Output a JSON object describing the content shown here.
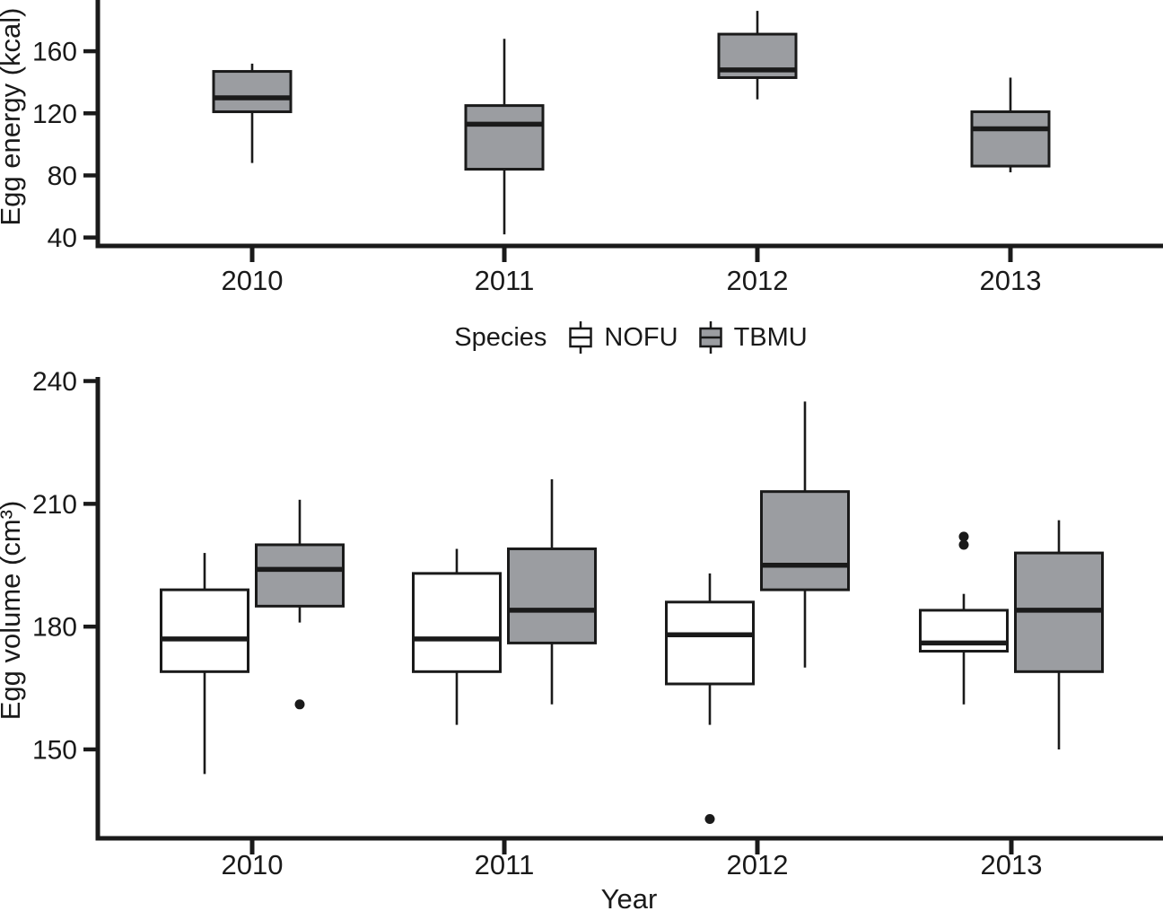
{
  "figure": {
    "background": "#ffffff",
    "line_color": "#1a1a1a",
    "text_color": "#1a1a1a"
  },
  "legend": {
    "title": "Species",
    "items": [
      {
        "label": "NOFU",
        "fill": "#ffffff"
      },
      {
        "label": "TBMU",
        "fill": "#9b9da1"
      }
    ]
  },
  "chart_data": [
    {
      "type": "boxplot",
      "id": "egg_energy",
      "title": "",
      "xlabel": "",
      "ylabel": "Egg energy (kcal)",
      "categories": [
        "2010",
        "2011",
        "2012",
        "2013"
      ],
      "yticks": [
        40,
        80,
        120,
        160
      ],
      "ylim": [
        34,
        193
      ],
      "grid": false,
      "series": [
        {
          "name": "TBMU",
          "fill": "#9b9da1",
          "boxes": [
            {
              "category": "2010",
              "low": 88,
              "q1": 121,
              "median": 130,
              "q3": 147,
              "high": 152,
              "outliers": []
            },
            {
              "category": "2011",
              "low": 42,
              "q1": 84,
              "median": 113,
              "q3": 125,
              "high": 168,
              "outliers": []
            },
            {
              "category": "2012",
              "low": 129,
              "q1": 143,
              "median": 148,
              "q3": 171,
              "high": 186,
              "outliers": []
            },
            {
              "category": "2013",
              "low": 82,
              "q1": 86,
              "median": 110,
              "q3": 121,
              "high": 143,
              "outliers": []
            }
          ]
        }
      ]
    },
    {
      "type": "boxplot",
      "id": "egg_volume",
      "title": "",
      "xlabel": "Year",
      "ylabel": "Egg volume (cm³)",
      "categories": [
        "2010",
        "2011",
        "2012",
        "2013"
      ],
      "yticks": [
        150,
        180,
        210,
        240
      ],
      "ylim": [
        128,
        241
      ],
      "grid": false,
      "series": [
        {
          "name": "NOFU",
          "fill": "#ffffff",
          "boxes": [
            {
              "category": "2010",
              "low": 144,
              "q1": 169,
              "median": 177,
              "q3": 189,
              "high": 198,
              "outliers": []
            },
            {
              "category": "2011",
              "low": 156,
              "q1": 169,
              "median": 177,
              "q3": 193,
              "high": 199,
              "outliers": []
            },
            {
              "category": "2012",
              "low": 156,
              "q1": 166,
              "median": 178,
              "q3": 186,
              "high": 193,
              "outliers": [
                133
              ]
            },
            {
              "category": "2013",
              "low": 161,
              "q1": 174,
              "median": 176,
              "q3": 184,
              "high": 188,
              "outliers": [
                202,
                200
              ]
            }
          ]
        },
        {
          "name": "TBMU",
          "fill": "#9b9da1",
          "boxes": [
            {
              "category": "2010",
              "low": 181,
              "q1": 185,
              "median": 194,
              "q3": 200,
              "high": 211,
              "outliers": [
                161
              ]
            },
            {
              "category": "2011",
              "low": 161,
              "q1": 176,
              "median": 184,
              "q3": 199,
              "high": 216,
              "outliers": []
            },
            {
              "category": "2012",
              "low": 170,
              "q1": 189,
              "median": 195,
              "q3": 213,
              "high": 235,
              "outliers": []
            },
            {
              "category": "2013",
              "low": 150,
              "q1": 169,
              "median": 184,
              "q3": 198,
              "high": 206,
              "outliers": []
            }
          ]
        }
      ]
    }
  ]
}
